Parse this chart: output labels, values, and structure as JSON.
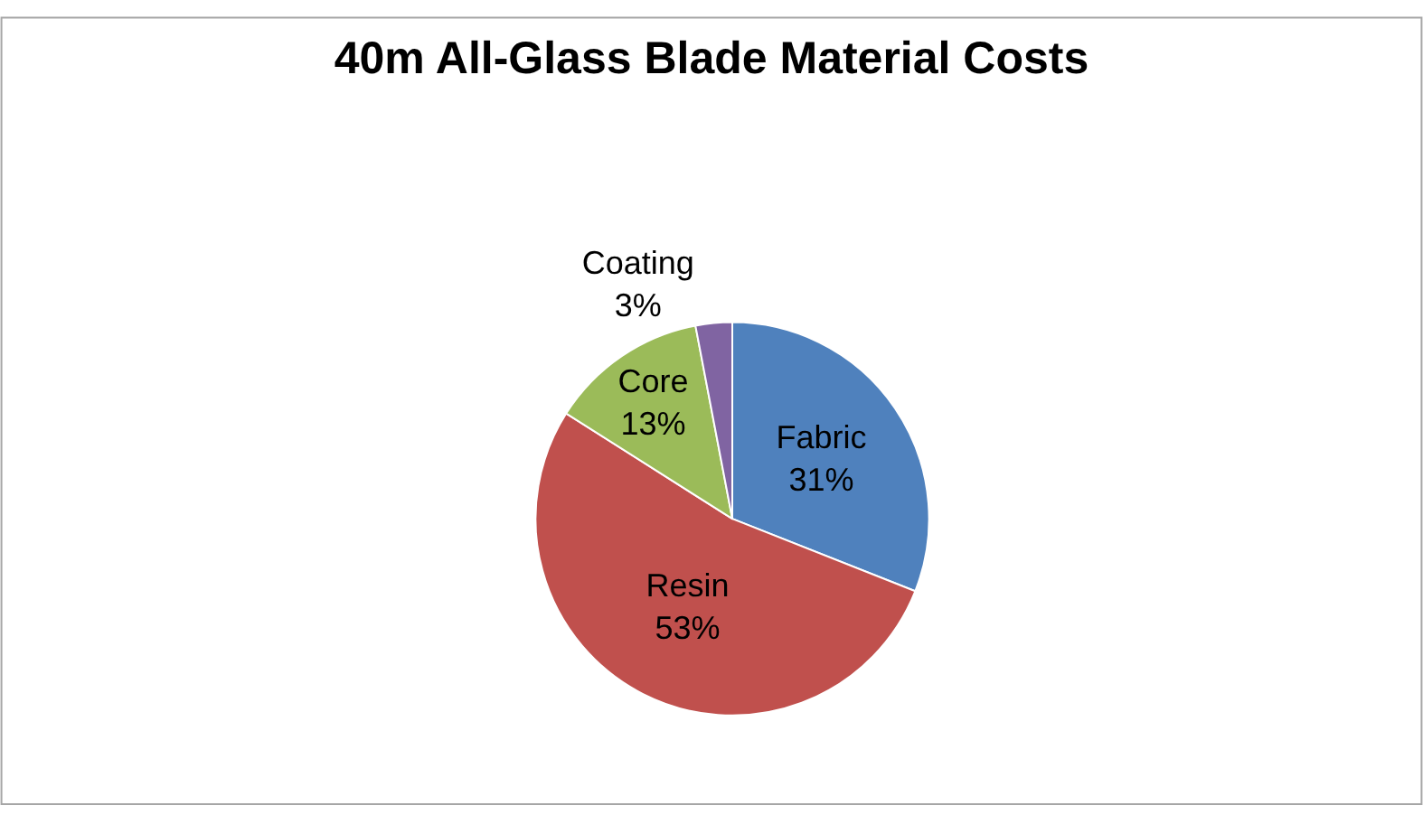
{
  "chart_data": {
    "type": "pie",
    "title": "40m All-Glass Blade Material Costs",
    "categories": [
      "Fabric",
      "Resin",
      "Core",
      "Coating"
    ],
    "values": [
      31,
      53,
      13,
      3
    ],
    "value_labels": [
      "31%",
      "53%",
      "13%",
      "3%"
    ],
    "colors": [
      "#4f81bd",
      "#c0504d",
      "#9bbb59",
      "#8064a2"
    ],
    "legend": false
  }
}
